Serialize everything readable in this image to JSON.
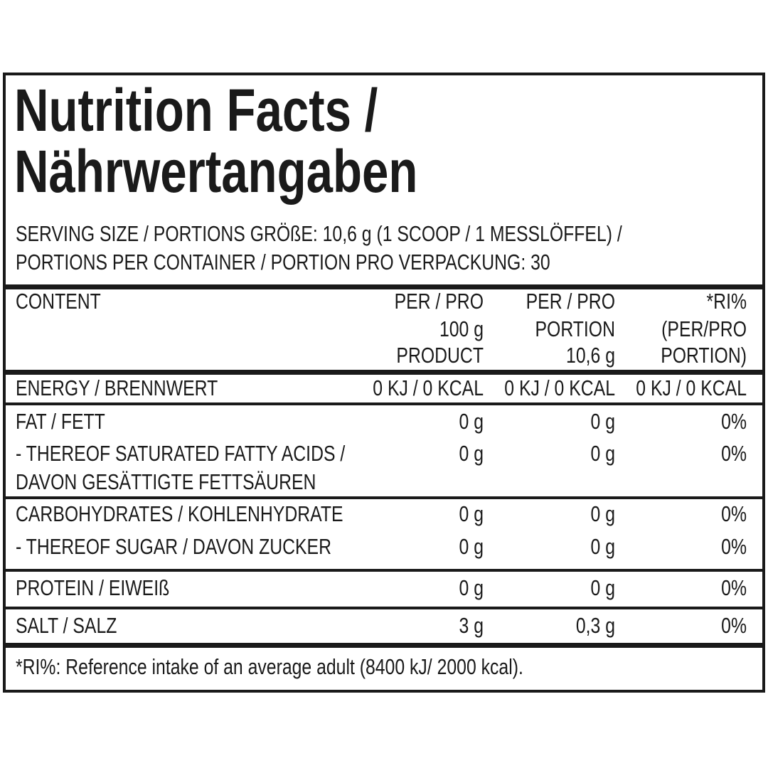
{
  "header": {
    "title_line1": "Nutrition Facts /",
    "title_line2": "Nährwertangaben",
    "serving_line1": "SERVING SIZE / PORTIONS GRÖßE: 10,6 g (1 SCOOP / 1 MESSLÖFFEL) /",
    "serving_line2": "PORTIONS PER CONTAINER / PORTION PRO VERPACKUNG: 30"
  },
  "table": {
    "columns": [
      [
        "CONTENT"
      ],
      [
        "PER / PRO",
        "100 g",
        "PRODUCT"
      ],
      [
        "PER / PRO",
        "PORTION",
        "10,6 g"
      ],
      [
        "*RI%",
        "(PER/PRO",
        "PORTION)"
      ]
    ],
    "rows": [
      {
        "label": [
          "ENERGY / BRENNWERT"
        ],
        "cells": [
          "0 KJ / 0 KCAL",
          "0 KJ / 0 KCAL",
          "0 KJ / 0 KCAL"
        ]
      },
      {
        "label": [
          "FAT / FETT"
        ],
        "cells": [
          "0 g",
          "0 g",
          "0%"
        ]
      },
      {
        "label": [
          "- THEREOF SATURATED FATTY ACIDS /",
          "DAVON GESÄTTIGTE FETTSÄUREN"
        ],
        "cells": [
          "0 g",
          "0 g",
          "0%"
        ]
      },
      {
        "label": [
          "CARBOHYDRATES / KOHLENHYDRATE"
        ],
        "cells": [
          "0 g",
          "0 g",
          "0%"
        ]
      },
      {
        "label": [
          "- THEREOF SUGAR / DAVON ZUCKER"
        ],
        "cells": [
          "0 g",
          "0 g",
          "0%"
        ]
      },
      {
        "label": [
          "PROTEIN / EIWEIß"
        ],
        "cells": [
          "0 g",
          "0 g",
          "0%"
        ]
      },
      {
        "label": [
          "SALT / SALZ"
        ],
        "cells": [
          "3 g",
          "0,3 g",
          "0%"
        ]
      }
    ]
  },
  "footnote": "*RI%: Reference intake of an average adult (8400 kJ/ 2000 kcal)."
}
